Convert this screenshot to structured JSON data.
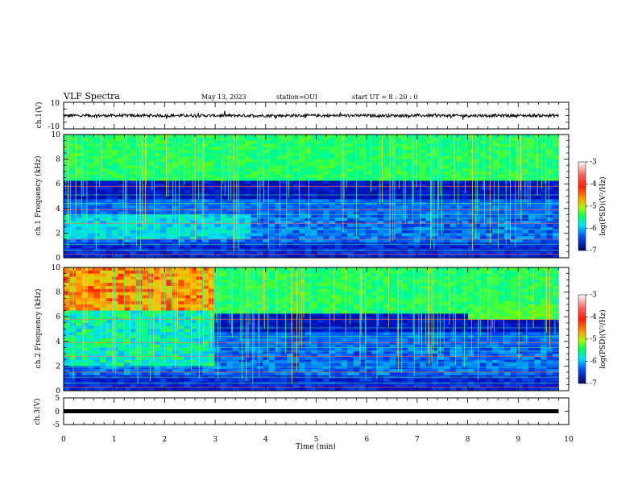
{
  "header": {
    "title": "VLF Spectra",
    "date": "May 13, 2023",
    "station": "station=OUI",
    "start": "start UT = 8 : 20 : 0"
  },
  "chart_data": [
    {
      "type": "line",
      "name": "ch1-waveform",
      "ylabel": "ch.1(V)",
      "ylim": [
        -10,
        10
      ],
      "yticks": [
        "10",
        "-10"
      ],
      "xlim": [
        0,
        10
      ]
    },
    {
      "type": "heatmap",
      "name": "ch1-spectrogram",
      "ylabel": "ch.1 Frequency (kHz)",
      "ylim": [
        0,
        10
      ],
      "yticks": [
        "0",
        "2",
        "4",
        "6",
        "8",
        "10"
      ],
      "xlim": [
        0,
        10
      ],
      "colorbar": {
        "label": "log(PSD)(V²/Hz)",
        "range": [
          -7,
          -3
        ],
        "ticks": [
          "-3",
          "-4",
          "-5",
          "-6",
          "-7"
        ]
      }
    },
    {
      "type": "heatmap",
      "name": "ch2-spectrogram",
      "ylabel": "ch.2 Frequency (kHz)",
      "ylim": [
        0,
        10
      ],
      "yticks": [
        "0",
        "2",
        "4",
        "6",
        "8",
        "10"
      ],
      "xlim": [
        0,
        10
      ],
      "colorbar": {
        "label": "log(PSD)(V²/Hz)",
        "range": [
          -7,
          -3
        ],
        "ticks": [
          "-3",
          "-4",
          "-5",
          "-6",
          "-7"
        ]
      }
    },
    {
      "type": "line",
      "name": "ch3-waveform",
      "ylabel": "ch.3(V)",
      "ylim": [
        -5,
        5
      ],
      "yticks": [
        "5",
        "0",
        "-5"
      ],
      "xlim": [
        0,
        10
      ]
    }
  ],
  "xaxis": {
    "label": "Time (min)",
    "ticks": [
      "0",
      "1",
      "2",
      "3",
      "4",
      "5",
      "6",
      "7",
      "8",
      "9",
      "10"
    ]
  },
  "colors": {
    "background": "#ffffff",
    "axis": "#000000",
    "spec_low": "#000080",
    "spec_mid": "#00ff80",
    "spec_high": "#ff0000"
  }
}
